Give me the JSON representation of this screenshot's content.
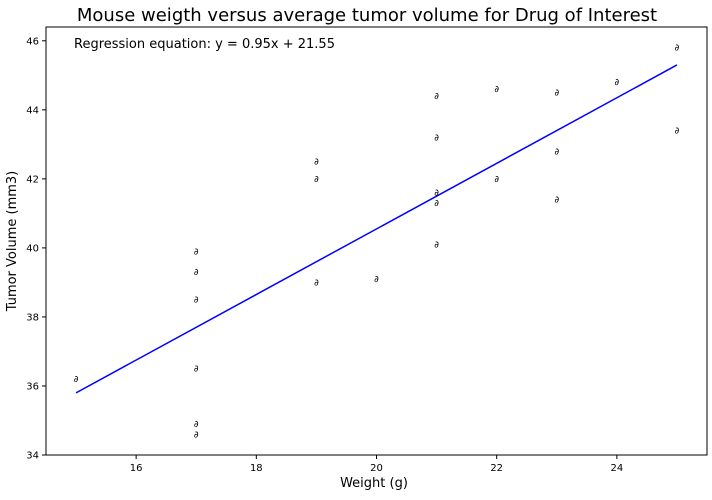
{
  "chart_data": {
    "type": "scatter",
    "title": "Mouse weigth versus average tumor volume for Drug of Interest",
    "xlabel": "Weight (g)",
    "ylabel": "Tumor Volume (mm3)",
    "xlim": [
      14.5,
      25.5
    ],
    "ylim": [
      34,
      46.4
    ],
    "xticks": [
      16,
      18,
      20,
      22,
      24
    ],
    "yticks": [
      34,
      36,
      38,
      40,
      42,
      44,
      46
    ],
    "grid": false,
    "marker_symbol": "∂",
    "colors": {
      "points": "#777777",
      "regression_line": "#0000ff",
      "axes": "#000000"
    },
    "series": [
      {
        "values": [
          [
            15,
            36.2
          ],
          [
            17,
            34.6
          ],
          [
            17,
            34.9
          ],
          [
            17,
            36.5
          ],
          [
            17,
            38.5
          ],
          [
            17,
            39.3
          ],
          [
            17,
            39.9
          ],
          [
            19,
            39.0
          ],
          [
            19,
            42.0
          ],
          [
            19,
            42.5
          ],
          [
            20,
            39.1
          ],
          [
            21,
            40.1
          ],
          [
            21,
            41.3
          ],
          [
            21,
            41.6
          ],
          [
            21,
            43.2
          ],
          [
            21,
            44.4
          ],
          [
            22,
            42.0
          ],
          [
            22,
            44.6
          ],
          [
            23,
            41.4
          ],
          [
            23,
            42.8
          ],
          [
            23,
            44.5
          ],
          [
            24,
            44.8
          ],
          [
            25,
            43.4
          ],
          [
            25,
            45.8
          ]
        ]
      }
    ],
    "regression": {
      "slope": 0.95,
      "intercept": 21.55,
      "x_range": [
        15,
        25
      ],
      "annotation": "Regression equation: y = 0.95x + 21.55"
    }
  }
}
